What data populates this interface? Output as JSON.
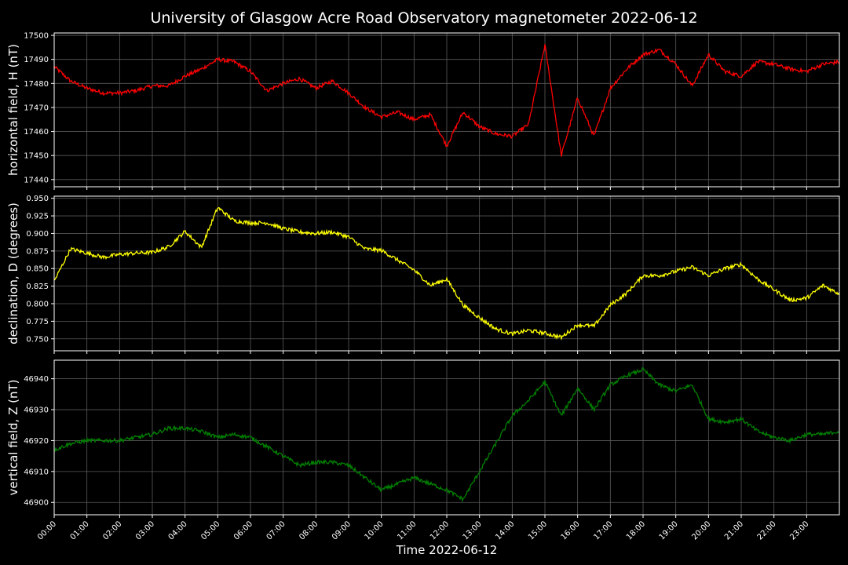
{
  "chart_data": {
    "type": "line",
    "title": "University of Glasgow Acre Road Observatory magnetometer 2022-06-12",
    "xlabel": "Time 2022-06-12",
    "x_ticks": [
      "00:00",
      "01:00",
      "02:00",
      "03:00",
      "04:00",
      "05:00",
      "06:00",
      "07:00",
      "08:00",
      "09:00",
      "10:00",
      "11:00",
      "12:00",
      "13:00",
      "14:00",
      "15:00",
      "16:00",
      "17:00",
      "18:00",
      "19:00",
      "20:00",
      "21:00",
      "22:00",
      "23:00"
    ],
    "xlim": [
      "00:00",
      "24:00"
    ],
    "grid": true,
    "x_hours": [
      0,
      0.5,
      1,
      1.5,
      2,
      2.5,
      3,
      3.5,
      4,
      4.5,
      5,
      5.5,
      6,
      6.5,
      7,
      7.5,
      8,
      8.5,
      9,
      9.5,
      10,
      10.5,
      11,
      11.5,
      12,
      12.5,
      13,
      13.5,
      14,
      14.5,
      15,
      15.5,
      16,
      16.5,
      17,
      17.5,
      18,
      18.5,
      19,
      19.5,
      20,
      20.5,
      21,
      21.5,
      22,
      22.5,
      23,
      23.5,
      24
    ],
    "panels": [
      {
        "ylabel": "horizontal field, H (nT)",
        "color": "#ff0000",
        "ylim": [
          17437,
          17501
        ],
        "yticks": [
          17440,
          17450,
          17460,
          17470,
          17480,
          17490,
          17500
        ],
        "values": [
          17487,
          17481,
          17478,
          17476,
          17476,
          17477,
          17479,
          17479,
          17483,
          17486,
          17490,
          17489,
          17485,
          17477,
          17480,
          17482,
          17478,
          17481,
          17476,
          17470,
          17466,
          17468,
          17465,
          17467,
          17454,
          17468,
          17462,
          17459,
          17458,
          17463,
          17496,
          17450,
          17474,
          17458,
          17478,
          17486,
          17492,
          17494,
          17488,
          17479,
          17492,
          17485,
          17483,
          17489,
          17488,
          17486,
          17485,
          17488,
          17489
        ]
      },
      {
        "ylabel": "declination, D (degrees)",
        "color": "#ffff00",
        "ylim": [
          0.733,
          0.953
        ],
        "yticks": [
          0.75,
          0.775,
          0.8,
          0.825,
          0.85,
          0.875,
          0.9,
          0.925,
          0.95
        ],
        "values": [
          0.832,
          0.878,
          0.872,
          0.866,
          0.87,
          0.872,
          0.873,
          0.881,
          0.903,
          0.88,
          0.937,
          0.918,
          0.915,
          0.915,
          0.907,
          0.902,
          0.9,
          0.902,
          0.895,
          0.878,
          0.876,
          0.862,
          0.848,
          0.826,
          0.835,
          0.798,
          0.78,
          0.764,
          0.757,
          0.762,
          0.758,
          0.752,
          0.77,
          0.768,
          0.798,
          0.815,
          0.84,
          0.84,
          0.846,
          0.852,
          0.84,
          0.85,
          0.856,
          0.835,
          0.82,
          0.805,
          0.808,
          0.826,
          0.814
        ]
      },
      {
        "ylabel": "vertical field, Z (nT)",
        "color": "#008000",
        "ylim": [
          46896,
          46946
        ],
        "yticks": [
          46900,
          46910,
          46920,
          46930,
          46940
        ],
        "values": [
          46917,
          46919,
          46920,
          46920,
          46920,
          46921,
          46922,
          46924,
          46924,
          46923,
          46921,
          46922,
          46921,
          46918,
          46915,
          46912,
          46913,
          46913,
          46912,
          46908,
          46904,
          46906,
          46908,
          46906,
          46904,
          46901,
          46910,
          46919,
          46928,
          46933,
          46939,
          46928,
          46937,
          46930,
          46938,
          46941,
          46943,
          46938,
          46936,
          46938,
          46927,
          46926,
          46927,
          46923,
          46921,
          46920,
          46922,
          46922,
          46923
        ]
      }
    ]
  }
}
